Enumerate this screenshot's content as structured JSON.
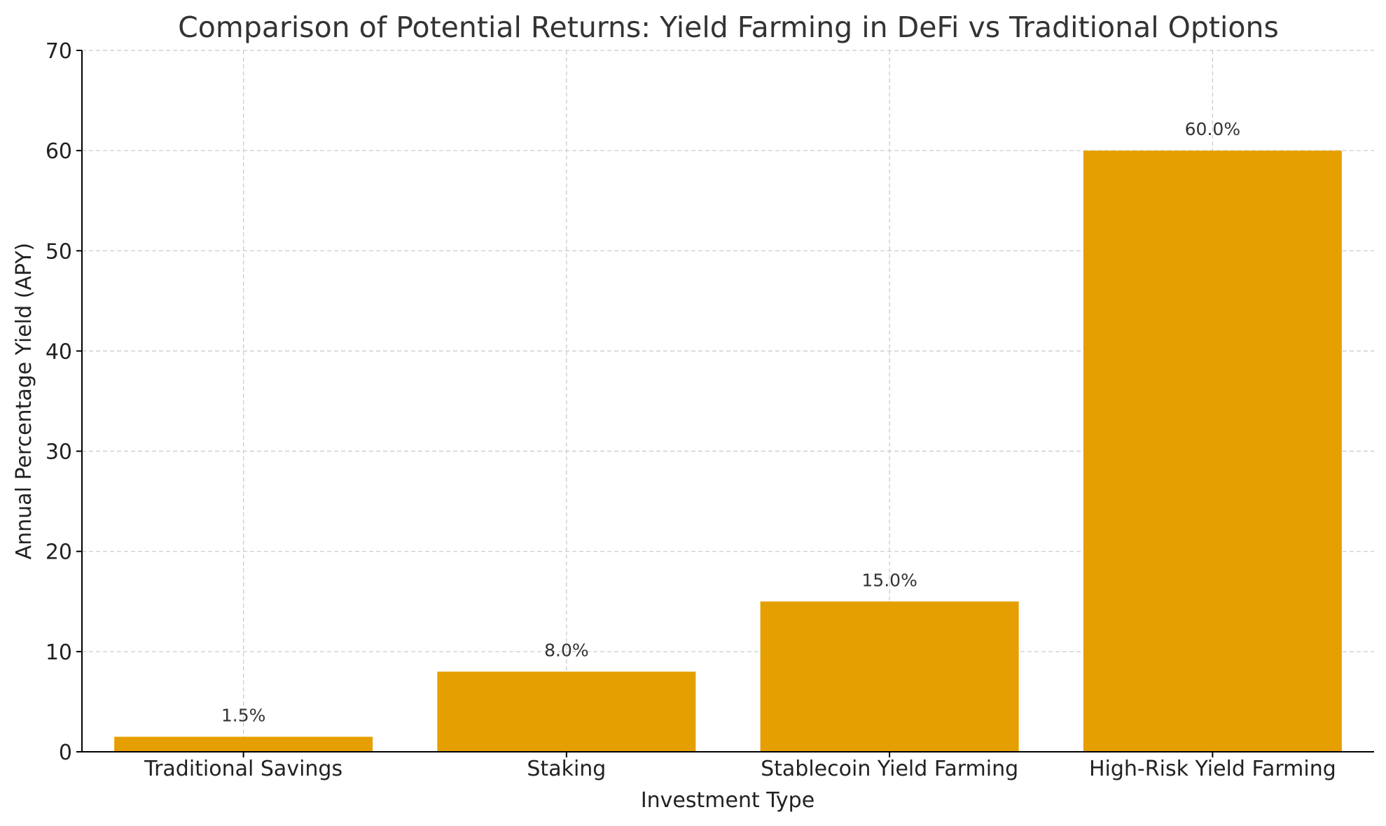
{
  "chart_data": {
    "type": "bar",
    "title": "Comparison of Potential Returns: Yield Farming in DeFi vs Traditional Options",
    "xlabel": "Investment Type",
    "ylabel": "Annual Percentage Yield (APY)",
    "categories": [
      "Traditional Savings",
      "Staking",
      "Stablecoin Yield Farming",
      "High-Risk Yield Farming"
    ],
    "values": [
      1.5,
      8.0,
      15.0,
      60.0
    ],
    "data_labels": [
      "1.5%",
      "8.0%",
      "15.0%",
      "60.0%"
    ],
    "ylim": [
      0,
      70
    ],
    "yticks": [
      0,
      10,
      20,
      30,
      40,
      50,
      60,
      70
    ],
    "ytick_labels": [
      "0",
      "10",
      "20",
      "30",
      "40",
      "50",
      "60",
      "70"
    ],
    "grid": true,
    "bar_color": "#E69F00"
  }
}
